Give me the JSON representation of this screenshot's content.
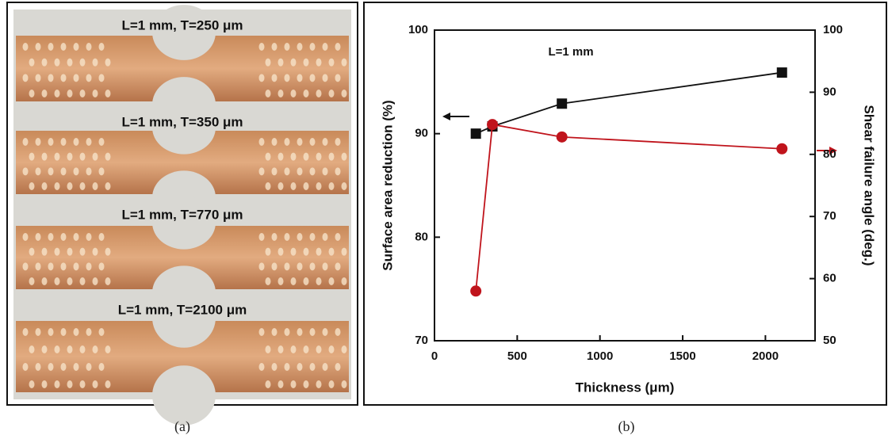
{
  "panel_a": {
    "specimens": [
      {
        "label": "L=1 mm, T=250 μm"
      },
      {
        "label": "L=1 mm, T=350 μm"
      },
      {
        "label": "L=1 mm, T=770 μm"
      },
      {
        "label": "L=1 mm, T=2100 μm"
      }
    ]
  },
  "captions": [
    "(a)",
    "(b)"
  ],
  "chart_data": {
    "type": "line",
    "annotation": "L=1 mm",
    "x_label": "Thickness (μm)",
    "y_label": "Surface area reduction (%)",
    "y2_label": "Shear failure angle (deg.)",
    "x": [
      250,
      350,
      770,
      2100
    ],
    "series": [
      {
        "color": "#111111",
        "marker": "square",
        "values": [
          90,
          90.7,
          92.9,
          95.9
        ]
      },
      {
        "color": "#c0141c",
        "marker": "circle",
        "axis": "y2",
        "values": [
          58,
          84.8,
          82.8,
          80.9
        ]
      }
    ],
    "xlim": [
      0,
      2300
    ],
    "xticks": [
      0,
      500,
      1000,
      1500,
      2000
    ],
    "ylim": [
      70,
      100
    ],
    "yticks": [
      70,
      80,
      90,
      100
    ],
    "y2lim": [
      50,
      100
    ],
    "y2ticks": [
      50,
      60,
      70,
      80,
      90,
      100
    ]
  }
}
